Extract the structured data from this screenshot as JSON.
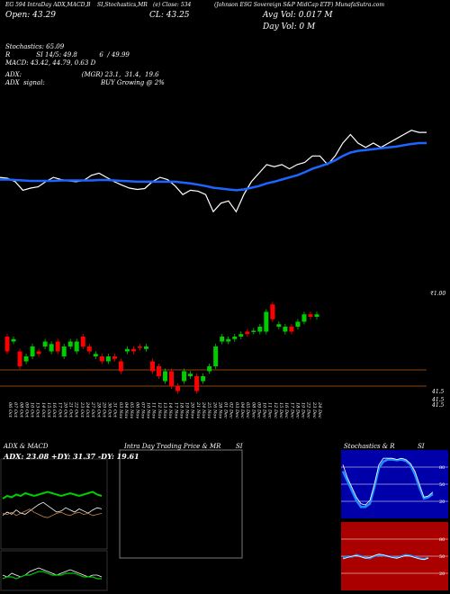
{
  "header": {
    "line1_left": "EG 594 IntraDay ADX,MACD,B",
    "line1_mid": "SI,Stochastics,MR",
    "line1_mid2": "(e) Close: 534",
    "line1_right": "(Johnson ESG Sovereign S&P MidCap ETF) MunafaSutra.com",
    "open_label": "Open: 43.29",
    "close_label": "CL: 43.25",
    "avg_vol": "Avg Vol: 0.017  M",
    "day_vol": "Day Vol: 0   M"
  },
  "indicators": {
    "stochastics": "Stochastics: 65.09",
    "rsi": "R             SI 14/5: 49.8           6  / 49.99",
    "macd": "MACD: 43.42, 44.79, 0.63 D",
    "adx": "ADX:                              (MGR) 23.1,  31.4,  19.6",
    "adx_signal": "ADX  signal:                            BUY Growing @ 2%"
  },
  "price_labels": {
    "upper": "₹1.00",
    "lower_a": "41.5",
    "lower_b": "41.5",
    "lower_c": "41.5"
  },
  "x_dates": [
    "06 Oct",
    "07 Oct",
    "08 Oct",
    "09 Oct",
    "10 Oct",
    "13 Oct",
    "14 Oct",
    "15 Oct",
    "16 Oct",
    "17 Oct",
    "20 Oct",
    "21 Oct",
    "22 Oct",
    "23 Oct",
    "24 Oct",
    "27 Oct",
    "28 Oct",
    "29 Oct",
    "30 Oct",
    "31 Oct",
    "03 Nov",
    "04 Nov",
    "05 Nov",
    "06 Nov",
    "07 Nov",
    "10 Nov",
    "11 Nov",
    "12 Nov",
    "13 Nov",
    "14 Nov",
    "17 Nov",
    "18 Nov",
    "19 Nov",
    "20 Nov",
    "21 Nov",
    "24 Nov",
    "25 Nov",
    "26 Nov",
    "28 Nov",
    "01 Dec",
    "02 Dec",
    "03 Dec",
    "04 Dec",
    "05 Dec",
    "08 Dec",
    "09 Dec",
    "10 Dec",
    "11 Dec",
    "12 Dec",
    "15 Dec",
    "16 Dec",
    "17 Dec",
    "18 Dec",
    "19 Dec",
    "22 Dec",
    "23 Dec",
    "24 Dec"
  ],
  "panels": {
    "adx_title": "ADX  & MACD",
    "adx_values": "ADX: 23.08  +DY: 31.37  -DY: 19.61",
    "intraday_title": "Intra  Day Trading Price  & MR",
    "intraday_si": "SI",
    "stoch_title": "Stochastics & R",
    "stoch_si": "SI",
    "stoch_levels": [
      "80",
      "50",
      "20"
    ],
    "rsi_levels": [
      "80",
      "50",
      "20"
    ]
  },
  "colors": {
    "up": "#00cc00",
    "down": "#ff0000",
    "ma": "#1e64ff",
    "price_line": "#ffffff",
    "level_line": "#8b4513",
    "stoch_bg": "#0000aa",
    "rsi_bg": "#aa0000"
  },
  "chart_data": {
    "type": "line",
    "close": [
      43.0,
      42.98,
      42.9,
      42.7,
      42.75,
      42.78,
      42.9,
      43.0,
      42.95,
      42.92,
      42.9,
      42.93,
      43.05,
      43.1,
      43.0,
      42.9,
      42.82,
      42.75,
      42.72,
      42.74,
      42.9,
      43.0,
      42.95,
      42.8,
      42.6,
      42.7,
      42.68,
      42.6,
      42.2,
      42.4,
      42.45,
      42.2,
      42.6,
      42.9,
      43.1,
      43.3,
      43.25,
      43.3,
      43.2,
      43.3,
      43.35,
      43.5,
      43.5,
      43.3,
      43.5,
      43.8,
      44.0,
      43.8,
      43.7,
      43.8,
      43.7,
      43.8,
      43.9,
      44.0,
      44.1,
      44.05,
      44.05
    ],
    "ma": [
      42.95,
      42.95,
      42.94,
      42.93,
      42.92,
      42.92,
      42.92,
      42.92,
      42.93,
      42.93,
      42.93,
      42.93,
      42.93,
      42.94,
      42.94,
      42.93,
      42.92,
      42.91,
      42.9,
      42.9,
      42.9,
      42.9,
      42.9,
      42.9,
      42.88,
      42.86,
      42.83,
      42.8,
      42.76,
      42.74,
      42.72,
      42.7,
      42.72,
      42.76,
      42.8,
      42.86,
      42.9,
      42.95,
      43.0,
      43.05,
      43.12,
      43.2,
      43.26,
      43.32,
      43.4,
      43.5,
      43.58,
      43.62,
      43.64,
      43.66,
      43.68,
      43.7,
      43.72,
      43.75,
      43.78,
      43.8,
      43.8
    ],
    "candles": [
      {
        "o": 43.0,
        "c": 42.7
      },
      {
        "o": 42.9,
        "c": 42.95
      },
      {
        "o": 42.7,
        "c": 42.4
      },
      {
        "o": 42.5,
        "c": 42.6
      },
      {
        "o": 42.6,
        "c": 42.8
      },
      {
        "o": 42.7,
        "c": 42.65
      },
      {
        "o": 42.8,
        "c": 42.9
      },
      {
        "o": 42.7,
        "c": 42.85
      },
      {
        "o": 42.9,
        "c": 42.7
      },
      {
        "o": 42.6,
        "c": 42.8
      },
      {
        "o": 42.8,
        "c": 42.9
      },
      {
        "o": 42.7,
        "c": 42.9
      },
      {
        "o": 43.0,
        "c": 42.8
      },
      {
        "o": 42.8,
        "c": 42.7
      },
      {
        "o": 42.6,
        "c": 42.65
      },
      {
        "o": 42.6,
        "c": 42.5
      },
      {
        "o": 42.5,
        "c": 42.6
      },
      {
        "o": 42.6,
        "c": 42.55
      },
      {
        "o": 42.5,
        "c": 42.3
      },
      {
        "o": 42.7,
        "c": 42.75
      },
      {
        "o": 42.75,
        "c": 42.7
      },
      {
        "o": 42.8,
        "c": 42.78
      },
      {
        "o": 42.75,
        "c": 42.8
      },
      {
        "o": 42.5,
        "c": 42.3
      },
      {
        "o": 42.4,
        "c": 42.2
      },
      {
        "o": 42.1,
        "c": 42.3
      },
      {
        "o": 42.3,
        "c": 42.0
      },
      {
        "o": 42.0,
        "c": 41.9
      },
      {
        "o": 42.1,
        "c": 42.3
      },
      {
        "o": 42.2,
        "c": 42.25
      },
      {
        "o": 42.2,
        "c": 41.9
      },
      {
        "o": 42.1,
        "c": 42.2
      },
      {
        "o": 42.3,
        "c": 42.4
      },
      {
        "o": 42.4,
        "c": 42.8
      },
      {
        "o": 42.9,
        "c": 43.0
      },
      {
        "o": 42.9,
        "c": 42.95
      },
      {
        "o": 42.95,
        "c": 43.0
      },
      {
        "o": 43.0,
        "c": 43.05
      },
      {
        "o": 43.1,
        "c": 43.05
      },
      {
        "o": 43.1,
        "c": 43.12
      },
      {
        "o": 43.1,
        "c": 43.2
      },
      {
        "o": 43.1,
        "c": 43.5
      },
      {
        "o": 43.65,
        "c": 43.35
      },
      {
        "o": 43.2,
        "c": 43.25
      },
      {
        "o": 43.1,
        "c": 43.2
      },
      {
        "o": 43.2,
        "c": 43.1
      },
      {
        "o": 43.2,
        "c": 43.3
      },
      {
        "o": 43.3,
        "c": 43.45
      },
      {
        "o": 43.45,
        "c": 43.4
      },
      {
        "o": 43.4,
        "c": 43.45
      }
    ]
  }
}
